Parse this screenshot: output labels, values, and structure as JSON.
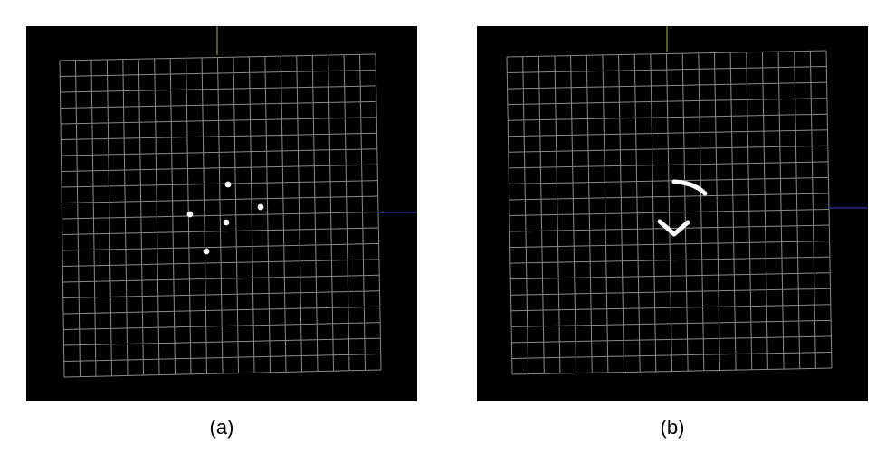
{
  "figure": {
    "panels": [
      {
        "id": "a",
        "caption": "(a)",
        "marker_type": "dots",
        "marker_count": 5
      },
      {
        "id": "b",
        "caption": "(b)",
        "marker_type": "strokes",
        "marker_count": 2
      }
    ]
  },
  "grid": {
    "rows": 20,
    "columns": 20,
    "line_color": "#8a8a8a",
    "background_color": "#000000"
  },
  "axes": {
    "y_axis_color": "#b5b53c",
    "x_axis_color": "#2a2a8c"
  },
  "markers": {
    "color": "#ffffff"
  }
}
